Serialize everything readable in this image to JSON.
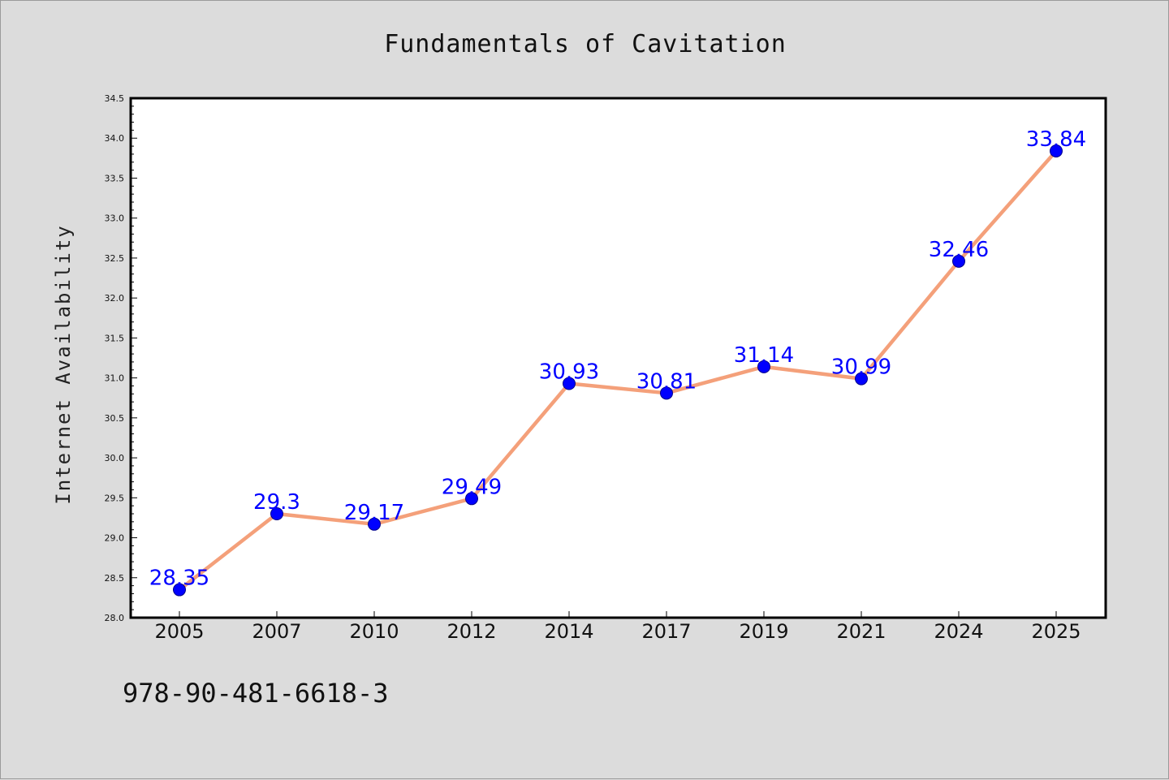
{
  "chart_data": {
    "type": "line",
    "title": "Fundamentals of Cavitation",
    "xlabel": "",
    "ylabel": "Internet Availability",
    "categories": [
      "2005",
      "2007",
      "2010",
      "2012",
      "2014",
      "2017",
      "2019",
      "2021",
      "2024",
      "2025"
    ],
    "series": [
      {
        "values": [
          28.35,
          29.3,
          29.17,
          29.49,
          30.93,
          30.81,
          31.14,
          30.99,
          32.46,
          33.84
        ],
        "labels": [
          "28.35",
          "29.3",
          "29.17",
          "29.49",
          "30.93",
          "30.81",
          "31.14",
          "30.99",
          "32.46",
          "33.84"
        ],
        "line_color": "#f4a07a",
        "marker_color": "#0000ff"
      }
    ],
    "ylim": [
      28.0,
      34.5
    ],
    "yticks": [
      "28.0",
      "28.5",
      "29.0",
      "29.5",
      "30.0",
      "30.5",
      "31.0",
      "31.5",
      "32.0",
      "32.5",
      "33.0",
      "33.5",
      "34.0",
      "34.5"
    ],
    "grid": false,
    "legend": "none"
  },
  "footer": {
    "isbn": "978-90-481-6618-3"
  }
}
